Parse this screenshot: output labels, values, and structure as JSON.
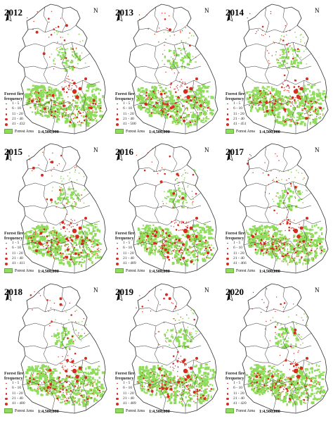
{
  "panels": [
    {
      "year": "2012",
      "legend": [
        "1 - 5",
        "6 - 10",
        "11 - 20",
        "21 - 40",
        "41 - 432"
      ],
      "scale": "1:4,500,000"
    },
    {
      "year": "2013",
      "legend": [
        "1 - 5",
        "6 - 10",
        "11 - 20",
        "21 - 40",
        "41 - 500"
      ],
      "scale": "1:4,500,000"
    },
    {
      "year": "2014",
      "legend": [
        "1 - 5",
        "6 - 10",
        "11 - 20",
        "21 - 40",
        "41 - 451"
      ],
      "scale": "1:4,500,000"
    },
    {
      "year": "2015",
      "legend": [
        "1 - 5",
        "6 - 10",
        "11 - 20",
        "21 - 40",
        "41 - 411"
      ],
      "scale": "1:4,500,000"
    },
    {
      "year": "2016",
      "legend": [
        "1 - 5",
        "6 - 10",
        "11 - 20",
        "21 - 40",
        "41 - 489"
      ],
      "scale": "1:4,500,000"
    },
    {
      "year": "2017",
      "legend": [
        "1 - 5",
        "6 - 10",
        "11 - 20",
        "21 - 40",
        "41 - 466"
      ],
      "scale": "1:4,500,000"
    },
    {
      "year": "2018",
      "legend": [
        "1 - 5",
        "6 - 10",
        "11 - 20",
        "21 - 40",
        "41 - 480"
      ],
      "scale": "1:4,500,000"
    },
    {
      "year": "2019",
      "legend": [
        "1 - 5",
        "6 - 10",
        "11 - 20",
        "21 - 40",
        "41 - 489"
      ],
      "scale": "1:4,500,000"
    },
    {
      "year": "2020",
      "legend": [
        "1 - 5",
        "6 - 10",
        "11 - 20",
        "21 - 40",
        "41 - 420"
      ],
      "scale": "1:4,500,000"
    }
  ],
  "legend_title": "Forest fire frequency",
  "forest_label": "Forest Area",
  "north_label": "N",
  "colors": {
    "fire": "#d62b1e",
    "forest": "#8fdc5c",
    "boundary": "#333333"
  }
}
